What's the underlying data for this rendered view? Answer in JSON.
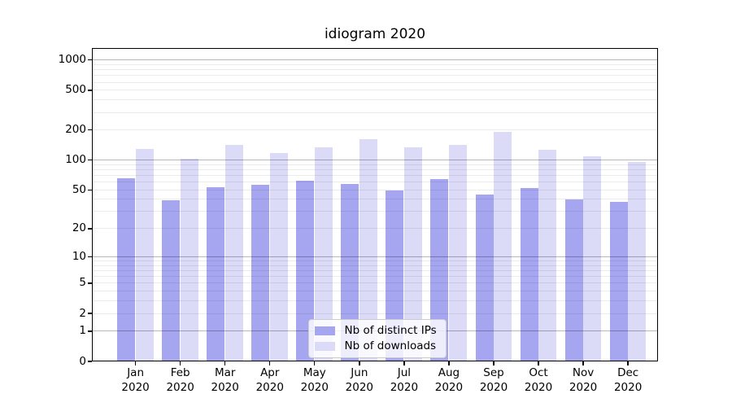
{
  "title": "idiogram 2020",
  "legend": {
    "items": [
      {
        "label": "Nb of distinct IPs",
        "color": "#a5a5f0"
      },
      {
        "label": "Nb of downloads",
        "color": "#dbdbf8"
      }
    ]
  },
  "chart_data": {
    "type": "bar",
    "title": "idiogram 2020",
    "categories": [
      "Jan 2020",
      "Feb 2020",
      "Mar 2020",
      "Apr 2020",
      "May 2020",
      "Jun 2020",
      "Jul 2020",
      "Aug 2020",
      "Sep 2020",
      "Oct 2020",
      "Nov 2020",
      "Dec 2020"
    ],
    "months": [
      "Jan",
      "Feb",
      "Mar",
      "Apr",
      "May",
      "Jun",
      "Jul",
      "Aug",
      "Sep",
      "Oct",
      "Nov",
      "Dec"
    ],
    "year_label": "2020",
    "series": [
      {
        "name": "Nb of distinct IPs",
        "color": "#a5a5f0",
        "values": [
          66,
          39,
          53,
          56,
          62,
          57,
          49,
          64,
          45,
          52,
          40,
          38
        ]
      },
      {
        "name": "Nb of downloads",
        "color": "#dbdbf8",
        "values": [
          130,
          104,
          141,
          118,
          135,
          162,
          134,
          142,
          193,
          126,
          110,
          96
        ]
      }
    ],
    "xlabel": "",
    "ylabel": "",
    "yscale": "log1p",
    "ylim": [
      0,
      1300
    ],
    "y_ticks": [
      0,
      1,
      2,
      5,
      10,
      20,
      50,
      100,
      200,
      500,
      1000
    ],
    "grid": {
      "major_lines": [
        1,
        10,
        100,
        1000
      ],
      "minor_lines": [
        2,
        3,
        4,
        5,
        6,
        7,
        8,
        9,
        20,
        30,
        40,
        50,
        60,
        70,
        80,
        90,
        200,
        300,
        400,
        500,
        600,
        700,
        800,
        900
      ]
    },
    "legend_position": "lower center inside"
  }
}
